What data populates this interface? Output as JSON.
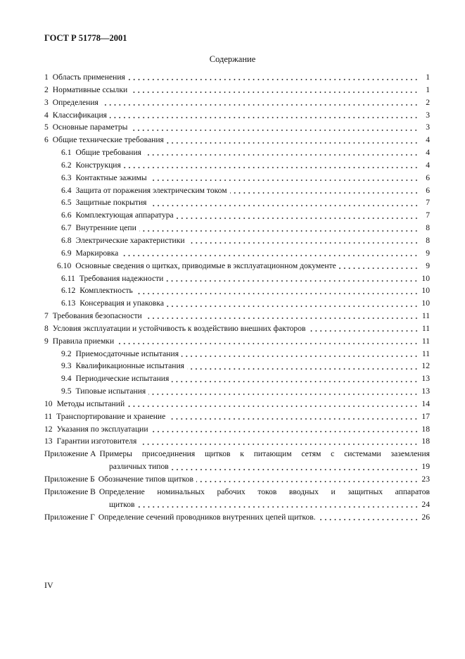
{
  "header": {
    "doc_id": "ГОСТ Р 51778—2001"
  },
  "toc": {
    "title": "Содержание",
    "entries": [
      {
        "num": "1",
        "text": "Область применения",
        "page": "1",
        "level": 1
      },
      {
        "num": "2",
        "text": "Нормативные ссылки",
        "page": "1",
        "level": 1
      },
      {
        "num": "3",
        "text": "Определения",
        "page": "2",
        "level": 1
      },
      {
        "num": "4",
        "text": "Классификация",
        "page": "3",
        "level": 1
      },
      {
        "num": "5",
        "text": "Основные параметры",
        "page": "3",
        "level": 1
      },
      {
        "num": "6",
        "text": "Общие технические требования",
        "page": "4",
        "level": 1
      },
      {
        "num": "6.1",
        "text": "Общие требования",
        "page": "4",
        "level": 2
      },
      {
        "num": "6.2",
        "text": "Конструкция",
        "page": "4",
        "level": 2
      },
      {
        "num": "6.3",
        "text": "Контактные зажимы",
        "page": "6",
        "level": 2
      },
      {
        "num": "6.4",
        "text": "Защита от поражения электрическим током",
        "page": "6",
        "level": 2
      },
      {
        "num": "6.5",
        "text": "Защитные покрытия",
        "page": "7",
        "level": 2
      },
      {
        "num": "6.6",
        "text": "Комплектующая аппаратура",
        "page": "7",
        "level": 2
      },
      {
        "num": "6.7",
        "text": "Внутренние цепи",
        "page": "8",
        "level": 2
      },
      {
        "num": "6.8",
        "text": "Электрические характеристики",
        "page": "8",
        "level": 2
      },
      {
        "num": "6.9",
        "text": "Маркировка",
        "page": "9",
        "level": 2
      },
      {
        "num": "6.10",
        "text": "Основные сведения о щитках, приводимые в эксплуатационном документе",
        "page": "9",
        "level": 3
      },
      {
        "num": "6.11",
        "text": "Требования надежности",
        "page": "10",
        "level": 2
      },
      {
        "num": "6.12",
        "text": "Комплектность",
        "page": "10",
        "level": 2
      },
      {
        "num": "6.13",
        "text": "Консервация и упаковка",
        "page": "10",
        "level": 2
      },
      {
        "num": "7",
        "text": "Требования безопасности",
        "page": "11",
        "level": 1
      },
      {
        "num": "8",
        "text": "Условия эксплуатации и устойчивость к воздействию внешних факторов",
        "page": "11",
        "level": 1
      },
      {
        "num": "9",
        "text": "Правила приемки",
        "page": "11",
        "level": 1
      },
      {
        "num": "9.2",
        "text": "Приемосдаточные испытания",
        "page": "11",
        "level": 2
      },
      {
        "num": "9.3",
        "text": "Квалификационные испытания",
        "page": "12",
        "level": 2
      },
      {
        "num": "9.4",
        "text": "Периодические испытания",
        "page": "13",
        "level": 2
      },
      {
        "num": "9.5",
        "text": "Типовые испытания",
        "page": "13",
        "level": 2
      },
      {
        "num": "10",
        "text": "Методы испытаний",
        "page": "14",
        "level": 1
      },
      {
        "num": "11",
        "text": "Транспортирование и хранение",
        "page": "17",
        "level": 1
      },
      {
        "num": "12",
        "text": "Указания по эксплуатации",
        "page": "18",
        "level": 1
      },
      {
        "num": "13",
        "text": "Гарантии изготовителя",
        "page": "18",
        "level": 1
      }
    ],
    "appendices": [
      {
        "prefix": "Приложение А",
        "line1": "Примеры присоединения щитков к питающим сетям с системами заземления",
        "line2": "различных типов",
        "page": "19"
      },
      {
        "prefix": "Приложение Б",
        "line1": "",
        "line2": "Обозначение типов щитков",
        "page": "23"
      },
      {
        "prefix": "Приложение В",
        "line1": "Определение номинальных рабочих токов вводных и защитных аппаратов",
        "line2": "щитков",
        "page": "24"
      },
      {
        "prefix": "Приложение Г",
        "line1": "",
        "line2": "Определение сечений проводников внутренних цепей щитков.",
        "page": "26"
      }
    ]
  },
  "footer": {
    "page_number": "IV"
  }
}
